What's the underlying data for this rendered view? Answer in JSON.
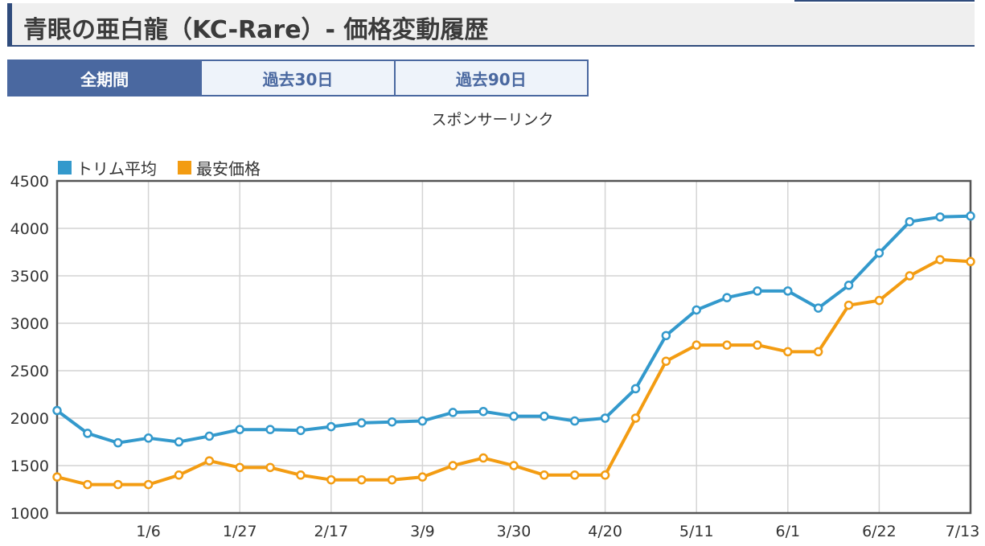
{
  "page": {
    "title": "青眼の亜白龍（KC-Rare）- 価格変動履歴",
    "sponsor_text": "スポンサーリンク"
  },
  "tabs": [
    {
      "label": "全期間",
      "active": true
    },
    {
      "label": "過去30日",
      "active": false
    },
    {
      "label": "過去90日",
      "active": false
    }
  ],
  "colors": {
    "accent": "#2f4b7c",
    "tab_active": "#4a68a0",
    "series_trim": "#3399cc",
    "series_min": "#f39c12"
  },
  "chart_data": {
    "type": "line",
    "ylim": [
      1000,
      4500
    ],
    "yticks": [
      1000,
      1500,
      2000,
      2500,
      3000,
      3500,
      4000,
      4500
    ],
    "x_tick_labels": [
      "1/6",
      "1/27",
      "2/17",
      "3/9",
      "3/30",
      "4/20",
      "5/11",
      "6/1",
      "6/22",
      "7/13"
    ],
    "x_tick_indices": [
      3,
      6,
      9,
      12,
      15,
      18,
      21,
      24,
      27,
      30
    ],
    "legend_position": "top-left",
    "grid": true,
    "series": [
      {
        "name": "トリム平均",
        "color": "#3399cc",
        "values": [
          2080,
          1840,
          1740,
          1790,
          1750,
          1810,
          1880,
          1880,
          1870,
          1910,
          1950,
          1960,
          1970,
          2060,
          2070,
          2020,
          2020,
          1970,
          2000,
          2310,
          2870,
          3140,
          3270,
          3340,
          3340,
          3160,
          3400,
          3740,
          4070,
          4120,
          4130
        ]
      },
      {
        "name": "最安価格",
        "color": "#f39c12",
        "values": [
          1380,
          1300,
          1300,
          1300,
          1400,
          1550,
          1480,
          1480,
          1400,
          1350,
          1350,
          1350,
          1380,
          1500,
          1580,
          1500,
          1400,
          1400,
          1400,
          2000,
          2600,
          2770,
          2770,
          2770,
          2700,
          2700,
          3190,
          3240,
          3500,
          3670,
          3650
        ]
      }
    ]
  }
}
